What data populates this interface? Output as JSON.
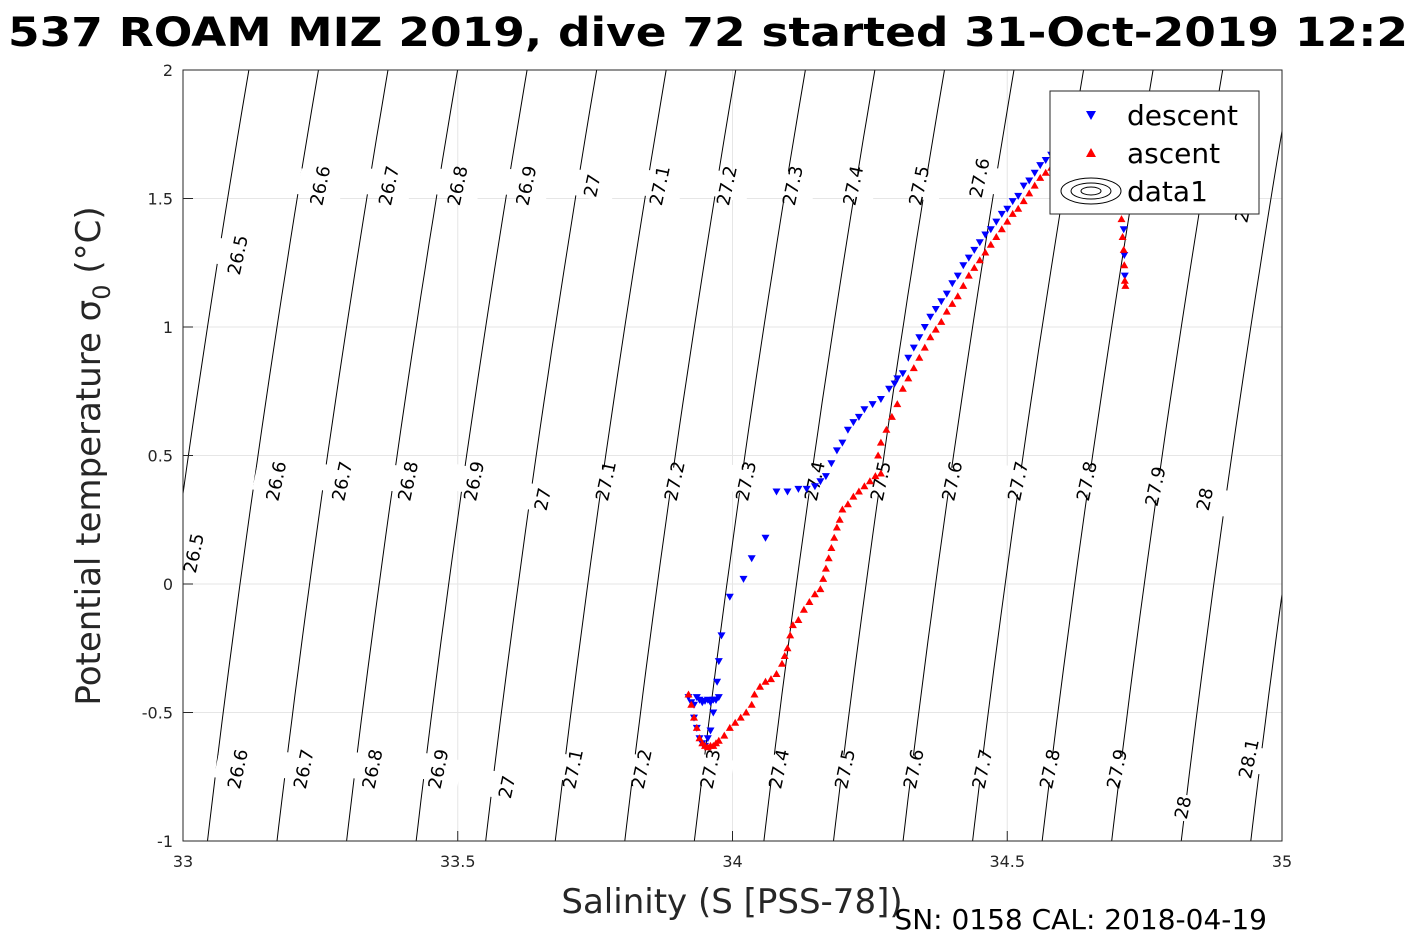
{
  "chart_data": {
    "type": "scatter",
    "title": "537 ROAM MIZ 2019, dive 72 started 31-Oct-2019 12:2",
    "xlabel": "Salinity (S [PSS-78])",
    "ylabel": "Potential temperature σ",
    "ylabel_sub": "0",
    "ylabel_unit": " (°C)",
    "xlim": [
      33,
      35
    ],
    "ylim": [
      -1,
      2
    ],
    "xticks": [
      "33",
      "33.5",
      "34",
      "34.5",
      "35"
    ],
    "yticks": [
      "-1",
      "-0.5",
      "0",
      "0.5",
      "1",
      "1.5",
      "2"
    ],
    "grid": true,
    "legend_position": "top-right",
    "footer": "SN: 0158  CAL: 2018-04-19",
    "legend": [
      {
        "label": "descent",
        "marker": "triangle-down",
        "color": "#0000ff"
      },
      {
        "label": "ascent",
        "marker": "triangle-up",
        "color": "#ff0000"
      },
      {
        "label": "data1",
        "marker": "contour",
        "color": "#000000"
      }
    ],
    "isopycnals": [
      26.5,
      26.6,
      26.7,
      26.8,
      26.9,
      27.0,
      27.1,
      27.2,
      27.3,
      27.4,
      27.5,
      27.6,
      27.7,
      27.8,
      27.9,
      28.0,
      28.1
    ],
    "contour_labels": [
      {
        "text": "26.5",
        "s": 33.1,
        "t": 1.28
      },
      {
        "text": "26.6",
        "s": 33.25,
        "t": 1.55
      },
      {
        "text": "26.7",
        "s": 33.375,
        "t": 1.55
      },
      {
        "text": "26.8",
        "s": 33.5,
        "t": 1.55
      },
      {
        "text": "26.9",
        "s": 33.625,
        "t": 1.55
      },
      {
        "text": "27",
        "s": 33.745,
        "t": 1.55
      },
      {
        "text": "27.1",
        "s": 33.868,
        "t": 1.55
      },
      {
        "text": "27.2",
        "s": 33.99,
        "t": 1.55
      },
      {
        "text": "27.3",
        "s": 34.11,
        "t": 1.55
      },
      {
        "text": "27.4",
        "s": 34.22,
        "t": 1.55
      },
      {
        "text": "27.5",
        "s": 34.34,
        "t": 1.55
      },
      {
        "text": "27.6",
        "s": 34.45,
        "t": 1.58
      },
      {
        "text": "28",
        "s": 34.93,
        "t": 1.45
      },
      {
        "text": "26.5",
        "s": 33.02,
        "t": 0.12
      },
      {
        "text": "26.6",
        "s": 33.17,
        "t": 0.4
      },
      {
        "text": "26.7",
        "s": 33.29,
        "t": 0.4
      },
      {
        "text": "26.8",
        "s": 33.41,
        "t": 0.4
      },
      {
        "text": "26.9",
        "s": 33.53,
        "t": 0.4
      },
      {
        "text": "27",
        "s": 33.655,
        "t": 0.33
      },
      {
        "text": "27.1",
        "s": 33.77,
        "t": 0.4
      },
      {
        "text": "27.2",
        "s": 33.895,
        "t": 0.4
      },
      {
        "text": "27.3",
        "s": 34.025,
        "t": 0.4
      },
      {
        "text": "27.4",
        "s": 34.15,
        "t": 0.4
      },
      {
        "text": "27.5",
        "s": 34.27,
        "t": 0.4
      },
      {
        "text": "27.6",
        "s": 34.4,
        "t": 0.4
      },
      {
        "text": "27.7",
        "s": 34.52,
        "t": 0.4
      },
      {
        "text": "27.8",
        "s": 34.645,
        "t": 0.4
      },
      {
        "text": "27.9",
        "s": 34.77,
        "t": 0.38
      },
      {
        "text": "28",
        "s": 34.86,
        "t": 0.33
      },
      {
        "text": "26.6",
        "s": 33.1,
        "t": -0.72
      },
      {
        "text": "26.7",
        "s": 33.22,
        "t": -0.72
      },
      {
        "text": "26.8",
        "s": 33.345,
        "t": -0.72
      },
      {
        "text": "26.9",
        "s": 33.465,
        "t": -0.72
      },
      {
        "text": "27",
        "s": 33.59,
        "t": -0.79
      },
      {
        "text": "27.1",
        "s": 33.71,
        "t": -0.72
      },
      {
        "text": "27.2",
        "s": 33.835,
        "t": -0.72
      },
      {
        "text": "27.3",
        "s": 33.96,
        "t": -0.72
      },
      {
        "text": "27.4",
        "s": 34.085,
        "t": -0.72
      },
      {
        "text": "27.5",
        "s": 34.205,
        "t": -0.72
      },
      {
        "text": "27.6",
        "s": 34.33,
        "t": -0.72
      },
      {
        "text": "27.7",
        "s": 34.455,
        "t": -0.72
      },
      {
        "text": "27.8",
        "s": 34.578,
        "t": -0.72
      },
      {
        "text": "27.9",
        "s": 34.7,
        "t": -0.72
      },
      {
        "text": "28",
        "s": 34.82,
        "t": -0.87
      },
      {
        "text": "28.1",
        "s": 34.94,
        "t": -0.68
      }
    ],
    "series": [
      {
        "name": "descent",
        "color": "#0000ff",
        "marker": "triangle-down",
        "points": [
          [
            33.92,
            -0.44
          ],
          [
            33.925,
            -0.46
          ],
          [
            33.93,
            -0.47
          ],
          [
            33.935,
            -0.44
          ],
          [
            33.94,
            -0.45
          ],
          [
            33.945,
            -0.46
          ],
          [
            33.95,
            -0.455
          ],
          [
            33.955,
            -0.45
          ],
          [
            33.96,
            -0.46
          ],
          [
            33.965,
            -0.45
          ],
          [
            33.97,
            -0.45
          ],
          [
            33.975,
            -0.44
          ],
          [
            33.93,
            -0.52
          ],
          [
            33.935,
            -0.56
          ],
          [
            33.94,
            -0.6
          ],
          [
            33.945,
            -0.62
          ],
          [
            33.95,
            -0.63
          ],
          [
            33.955,
            -0.6
          ],
          [
            33.96,
            -0.57
          ],
          [
            33.965,
            -0.5
          ],
          [
            33.97,
            -0.45
          ],
          [
            33.972,
            -0.38
          ],
          [
            33.975,
            -0.3
          ],
          [
            33.98,
            -0.2
          ],
          [
            33.995,
            -0.05
          ],
          [
            34.02,
            0.02
          ],
          [
            34.035,
            0.1
          ],
          [
            34.06,
            0.18
          ],
          [
            34.08,
            0.36
          ],
          [
            34.1,
            0.36
          ],
          [
            34.12,
            0.37
          ],
          [
            34.135,
            0.37
          ],
          [
            34.15,
            0.38
          ],
          [
            34.16,
            0.4
          ],
          [
            34.17,
            0.42
          ],
          [
            34.18,
            0.47
          ],
          [
            34.19,
            0.52
          ],
          [
            34.2,
            0.55
          ],
          [
            34.21,
            0.6
          ],
          [
            34.22,
            0.63
          ],
          [
            34.23,
            0.65
          ],
          [
            34.24,
            0.68
          ],
          [
            34.255,
            0.7
          ],
          [
            34.27,
            0.72
          ],
          [
            34.285,
            0.76
          ],
          [
            34.295,
            0.78
          ],
          [
            34.3,
            0.8
          ],
          [
            34.31,
            0.82
          ],
          [
            34.32,
            0.88
          ],
          [
            34.33,
            0.92
          ],
          [
            34.34,
            0.96
          ],
          [
            34.35,
            1.0
          ],
          [
            34.36,
            1.04
          ],
          [
            34.37,
            1.07
          ],
          [
            34.38,
            1.1
          ],
          [
            34.39,
            1.13
          ],
          [
            34.4,
            1.17
          ],
          [
            34.41,
            1.2
          ],
          [
            34.42,
            1.24
          ],
          [
            34.43,
            1.27
          ],
          [
            34.44,
            1.3
          ],
          [
            34.45,
            1.33
          ],
          [
            34.46,
            1.36
          ],
          [
            34.47,
            1.38
          ],
          [
            34.48,
            1.41
          ],
          [
            34.49,
            1.44
          ],
          [
            34.5,
            1.46
          ],
          [
            34.51,
            1.49
          ],
          [
            34.52,
            1.51
          ],
          [
            34.53,
            1.55
          ],
          [
            34.54,
            1.57
          ],
          [
            34.55,
            1.6
          ],
          [
            34.56,
            1.63
          ],
          [
            34.57,
            1.65
          ],
          [
            34.58,
            1.67
          ],
          [
            34.59,
            1.69
          ],
          [
            34.6,
            1.72
          ],
          [
            34.62,
            1.75
          ],
          [
            34.64,
            1.79
          ],
          [
            34.66,
            1.82
          ],
          [
            34.68,
            1.84
          ],
          [
            34.7,
            1.78
          ],
          [
            34.708,
            1.65
          ],
          [
            34.71,
            1.5
          ],
          [
            34.712,
            1.38
          ],
          [
            34.713,
            1.28
          ],
          [
            34.714,
            1.2
          ]
        ]
      },
      {
        "name": "ascent",
        "color": "#ff0000",
        "marker": "triangle-up",
        "points": [
          [
            33.92,
            -0.43
          ],
          [
            33.925,
            -0.47
          ],
          [
            33.93,
            -0.52
          ],
          [
            33.935,
            -0.56
          ],
          [
            33.94,
            -0.6
          ],
          [
            33.945,
            -0.62
          ],
          [
            33.95,
            -0.63
          ],
          [
            33.955,
            -0.635
          ],
          [
            33.96,
            -0.63
          ],
          [
            33.965,
            -0.63
          ],
          [
            33.97,
            -0.62
          ],
          [
            33.975,
            -0.61
          ],
          [
            33.985,
            -0.59
          ],
          [
            33.995,
            -0.56
          ],
          [
            34.005,
            -0.54
          ],
          [
            34.015,
            -0.52
          ],
          [
            34.025,
            -0.5
          ],
          [
            34.035,
            -0.47
          ],
          [
            34.04,
            -0.43
          ],
          [
            34.05,
            -0.4
          ],
          [
            34.06,
            -0.38
          ],
          [
            34.07,
            -0.37
          ],
          [
            34.08,
            -0.35
          ],
          [
            34.09,
            -0.31
          ],
          [
            34.095,
            -0.28
          ],
          [
            34.1,
            -0.25
          ],
          [
            34.105,
            -0.2
          ],
          [
            34.11,
            -0.16
          ],
          [
            34.12,
            -0.14
          ],
          [
            34.13,
            -0.1
          ],
          [
            34.14,
            -0.07
          ],
          [
            34.15,
            -0.04
          ],
          [
            34.16,
            -0.02
          ],
          [
            34.165,
            0.02
          ],
          [
            34.17,
            0.06
          ],
          [
            34.175,
            0.1
          ],
          [
            34.18,
            0.14
          ],
          [
            34.185,
            0.18
          ],
          [
            34.19,
            0.22
          ],
          [
            34.195,
            0.25
          ],
          [
            34.2,
            0.29
          ],
          [
            34.21,
            0.31
          ],
          [
            34.22,
            0.34
          ],
          [
            34.23,
            0.36
          ],
          [
            34.24,
            0.38
          ],
          [
            34.25,
            0.4
          ],
          [
            34.26,
            0.42
          ],
          [
            34.27,
            0.43
          ],
          [
            34.265,
            0.5
          ],
          [
            34.27,
            0.55
          ],
          [
            34.28,
            0.6
          ],
          [
            34.29,
            0.65
          ],
          [
            34.3,
            0.7
          ],
          [
            34.31,
            0.76
          ],
          [
            34.32,
            0.8
          ],
          [
            34.33,
            0.84
          ],
          [
            34.34,
            0.88
          ],
          [
            34.35,
            0.92
          ],
          [
            34.36,
            0.96
          ],
          [
            34.37,
            0.99
          ],
          [
            34.38,
            1.02
          ],
          [
            34.39,
            1.06
          ],
          [
            34.4,
            1.09
          ],
          [
            34.41,
            1.12
          ],
          [
            34.42,
            1.16
          ],
          [
            34.43,
            1.2
          ],
          [
            34.44,
            1.23
          ],
          [
            34.45,
            1.26
          ],
          [
            34.46,
            1.29
          ],
          [
            34.47,
            1.32
          ],
          [
            34.48,
            1.35
          ],
          [
            34.49,
            1.38
          ],
          [
            34.5,
            1.41
          ],
          [
            34.51,
            1.44
          ],
          [
            34.52,
            1.46
          ],
          [
            34.53,
            1.49
          ],
          [
            34.54,
            1.52
          ],
          [
            34.55,
            1.55
          ],
          [
            34.56,
            1.58
          ],
          [
            34.57,
            1.6
          ],
          [
            34.58,
            1.62
          ],
          [
            34.59,
            1.64
          ],
          [
            34.6,
            1.67
          ],
          [
            34.61,
            1.69
          ],
          [
            34.62,
            1.71
          ],
          [
            34.7,
            1.6
          ],
          [
            34.705,
            1.5
          ],
          [
            34.708,
            1.42
          ],
          [
            34.71,
            1.35
          ],
          [
            34.712,
            1.3
          ],
          [
            34.713,
            1.24
          ],
          [
            34.714,
            1.18
          ],
          [
            34.715,
            1.16
          ]
        ]
      }
    ]
  }
}
